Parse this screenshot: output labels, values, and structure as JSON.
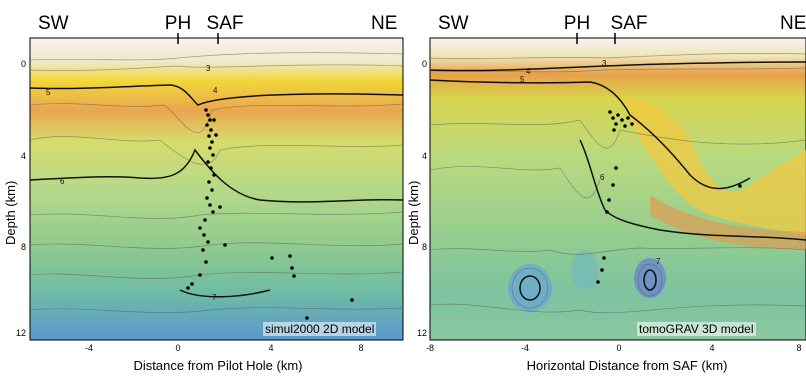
{
  "panels": [
    {
      "regions": {
        "sw": "SW",
        "ph": "PH",
        "saf": "SAF",
        "ne": "NE"
      },
      "y_axis_label": "Depth (km)",
      "y_ticks": [
        "0",
        "4",
        "8",
        "12"
      ],
      "x_axis_label": "Distance from Pilot Hole (km)",
      "x_ticks": [
        "-4",
        "0",
        "4",
        "8"
      ],
      "model_label": "simul2000 2D model",
      "contour_labels": [
        "3",
        "4",
        "5",
        "6",
        "7"
      ]
    },
    {
      "regions": {
        "sw": "SW",
        "ph": "PH",
        "saf": "SAF",
        "ne": "NE"
      },
      "y_axis_label": "Depth (km)",
      "y_ticks": [
        "0",
        "4",
        "8",
        "12"
      ],
      "x_axis_label": "Horizontal Distance from SAF (km)",
      "x_ticks": [
        "-8",
        "-4",
        "0",
        "4",
        "8"
      ],
      "model_label": "tomoGRAV 3D model",
      "contour_labels": [
        "3",
        "4",
        "5",
        "6",
        "7"
      ]
    }
  ],
  "colors": {
    "slow": "#f4f1e8",
    "yellow": "#f2d83a",
    "orange": "#e8a048",
    "green": "#a9d38a",
    "teal": "#7cc3a0",
    "blue": "#6aa6d4"
  }
}
